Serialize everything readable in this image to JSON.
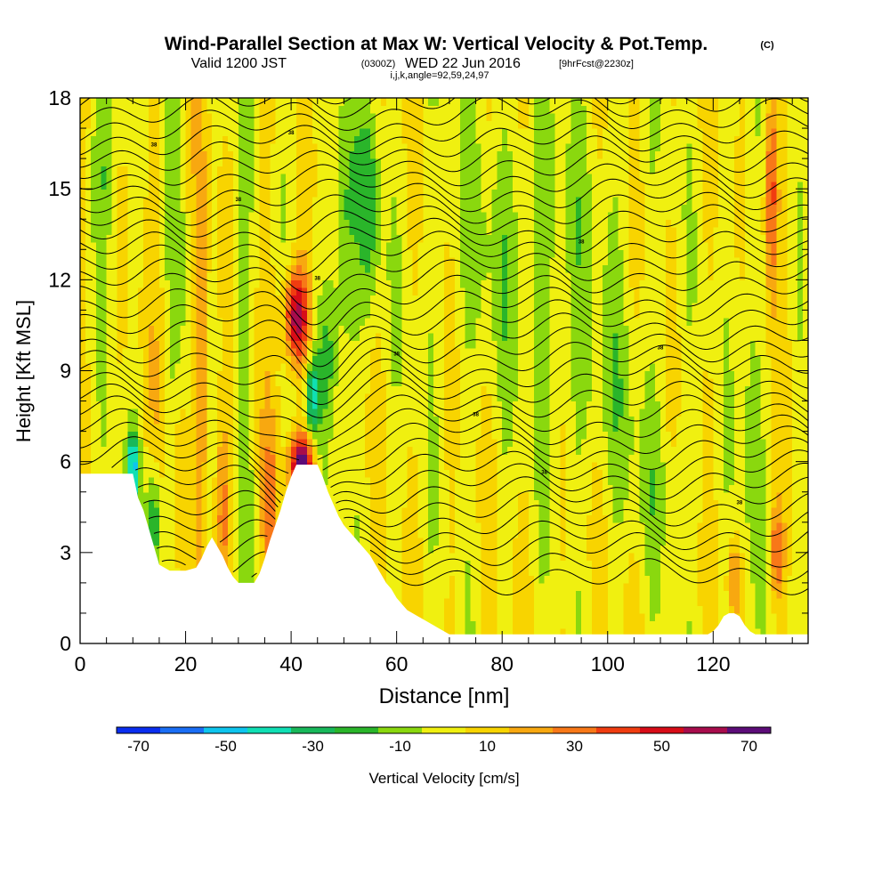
{
  "header": {
    "title": "Wind-Parallel Section at Max W: Vertical Velocity & Pot.Temp.",
    "copyright": "(C)",
    "valid_prefix": "Valid 1200 JST",
    "valid_utc": "(0300Z)",
    "valid_date": "WED 22 Jun 2016",
    "forecast": "[9hrFcst@2230z]",
    "indices": "i,j,k,angle=92,59,24,97"
  },
  "chart_data": {
    "type": "heatmap",
    "xlabel": "Distance [nm]",
    "ylabel": "Height [Kft MSL]",
    "xlim": [
      0,
      138
    ],
    "ylim": [
      0,
      18
    ],
    "x_ticks": [
      0,
      20,
      40,
      60,
      80,
      100,
      120
    ],
    "y_ticks": [
      0,
      3,
      6,
      9,
      12,
      15,
      18
    ],
    "colorbar": {
      "label": "Vertical Velocity [cm/s]",
      "tick_values": [
        -70,
        -50,
        -30,
        -10,
        10,
        30,
        50,
        70
      ],
      "bins": [
        -75,
        -65,
        -55,
        -45,
        -35,
        -25,
        -15,
        -5,
        5,
        15,
        25,
        35,
        45,
        55,
        65,
        75
      ],
      "colors": [
        "#0a2ef0",
        "#1a6ef5",
        "#0ec5ee",
        "#10dfb4",
        "#18b85a",
        "#2ab52a",
        "#8ad80e",
        "#f0f010",
        "#f8d400",
        "#f8a810",
        "#f87818",
        "#f03c10",
        "#d80c18",
        "#a80c4c",
        "#5c0c78"
      ]
    },
    "terrain": [
      [
        0,
        5.6
      ],
      [
        2,
        5.6
      ],
      [
        4,
        5.6
      ],
      [
        6,
        5.6
      ],
      [
        8,
        5.6
      ],
      [
        10,
        5.6
      ],
      [
        11,
        4.8
      ],
      [
        12,
        4.4
      ],
      [
        13,
        3.8
      ],
      [
        14,
        3.2
      ],
      [
        15,
        2.6
      ],
      [
        16,
        2.5
      ],
      [
        17,
        2.4
      ],
      [
        18,
        2.4
      ],
      [
        20,
        2.4
      ],
      [
        22,
        2.5
      ],
      [
        23,
        2.8
      ],
      [
        24,
        3.2
      ],
      [
        25,
        3.5
      ],
      [
        26,
        3.2
      ],
      [
        27,
        2.9
      ],
      [
        28,
        2.5
      ],
      [
        29,
        2.2
      ],
      [
        30,
        2.0
      ],
      [
        31,
        2.0
      ],
      [
        32,
        2.0
      ],
      [
        33,
        2.0
      ],
      [
        34,
        2.3
      ],
      [
        35,
        2.8
      ],
      [
        36,
        3.4
      ],
      [
        37,
        3.9
      ],
      [
        38,
        4.4
      ],
      [
        39,
        5.0
      ],
      [
        40,
        5.5
      ],
      [
        41,
        5.9
      ],
      [
        43,
        5.9
      ],
      [
        45,
        5.9
      ],
      [
        46,
        5.5
      ],
      [
        47,
        5.0
      ],
      [
        48,
        4.6
      ],
      [
        49,
        4.2
      ],
      [
        50,
        3.9
      ],
      [
        51,
        3.7
      ],
      [
        52,
        3.5
      ],
      [
        53,
        3.3
      ],
      [
        54,
        3.1
      ],
      [
        55,
        2.9
      ],
      [
        56,
        2.6
      ],
      [
        57,
        2.3
      ],
      [
        58,
        2.0
      ],
      [
        59,
        1.8
      ],
      [
        60,
        1.5
      ],
      [
        61,
        1.3
      ],
      [
        62,
        1.1
      ],
      [
        64,
        0.9
      ],
      [
        66,
        0.7
      ],
      [
        68,
        0.5
      ],
      [
        69,
        0.4
      ],
      [
        70,
        0.3
      ],
      [
        100,
        0.3
      ],
      [
        119,
        0.3
      ],
      [
        120,
        0.4
      ],
      [
        121,
        0.6
      ],
      [
        122,
        0.9
      ],
      [
        123,
        1.0
      ],
      [
        124,
        1.0
      ],
      [
        125,
        0.9
      ],
      [
        126,
        0.6
      ],
      [
        127,
        0.4
      ],
      [
        128,
        0.3
      ],
      [
        138,
        0.3
      ]
    ],
    "isentrope_spacing_kft": 0.45,
    "isentrope_label": "38"
  }
}
